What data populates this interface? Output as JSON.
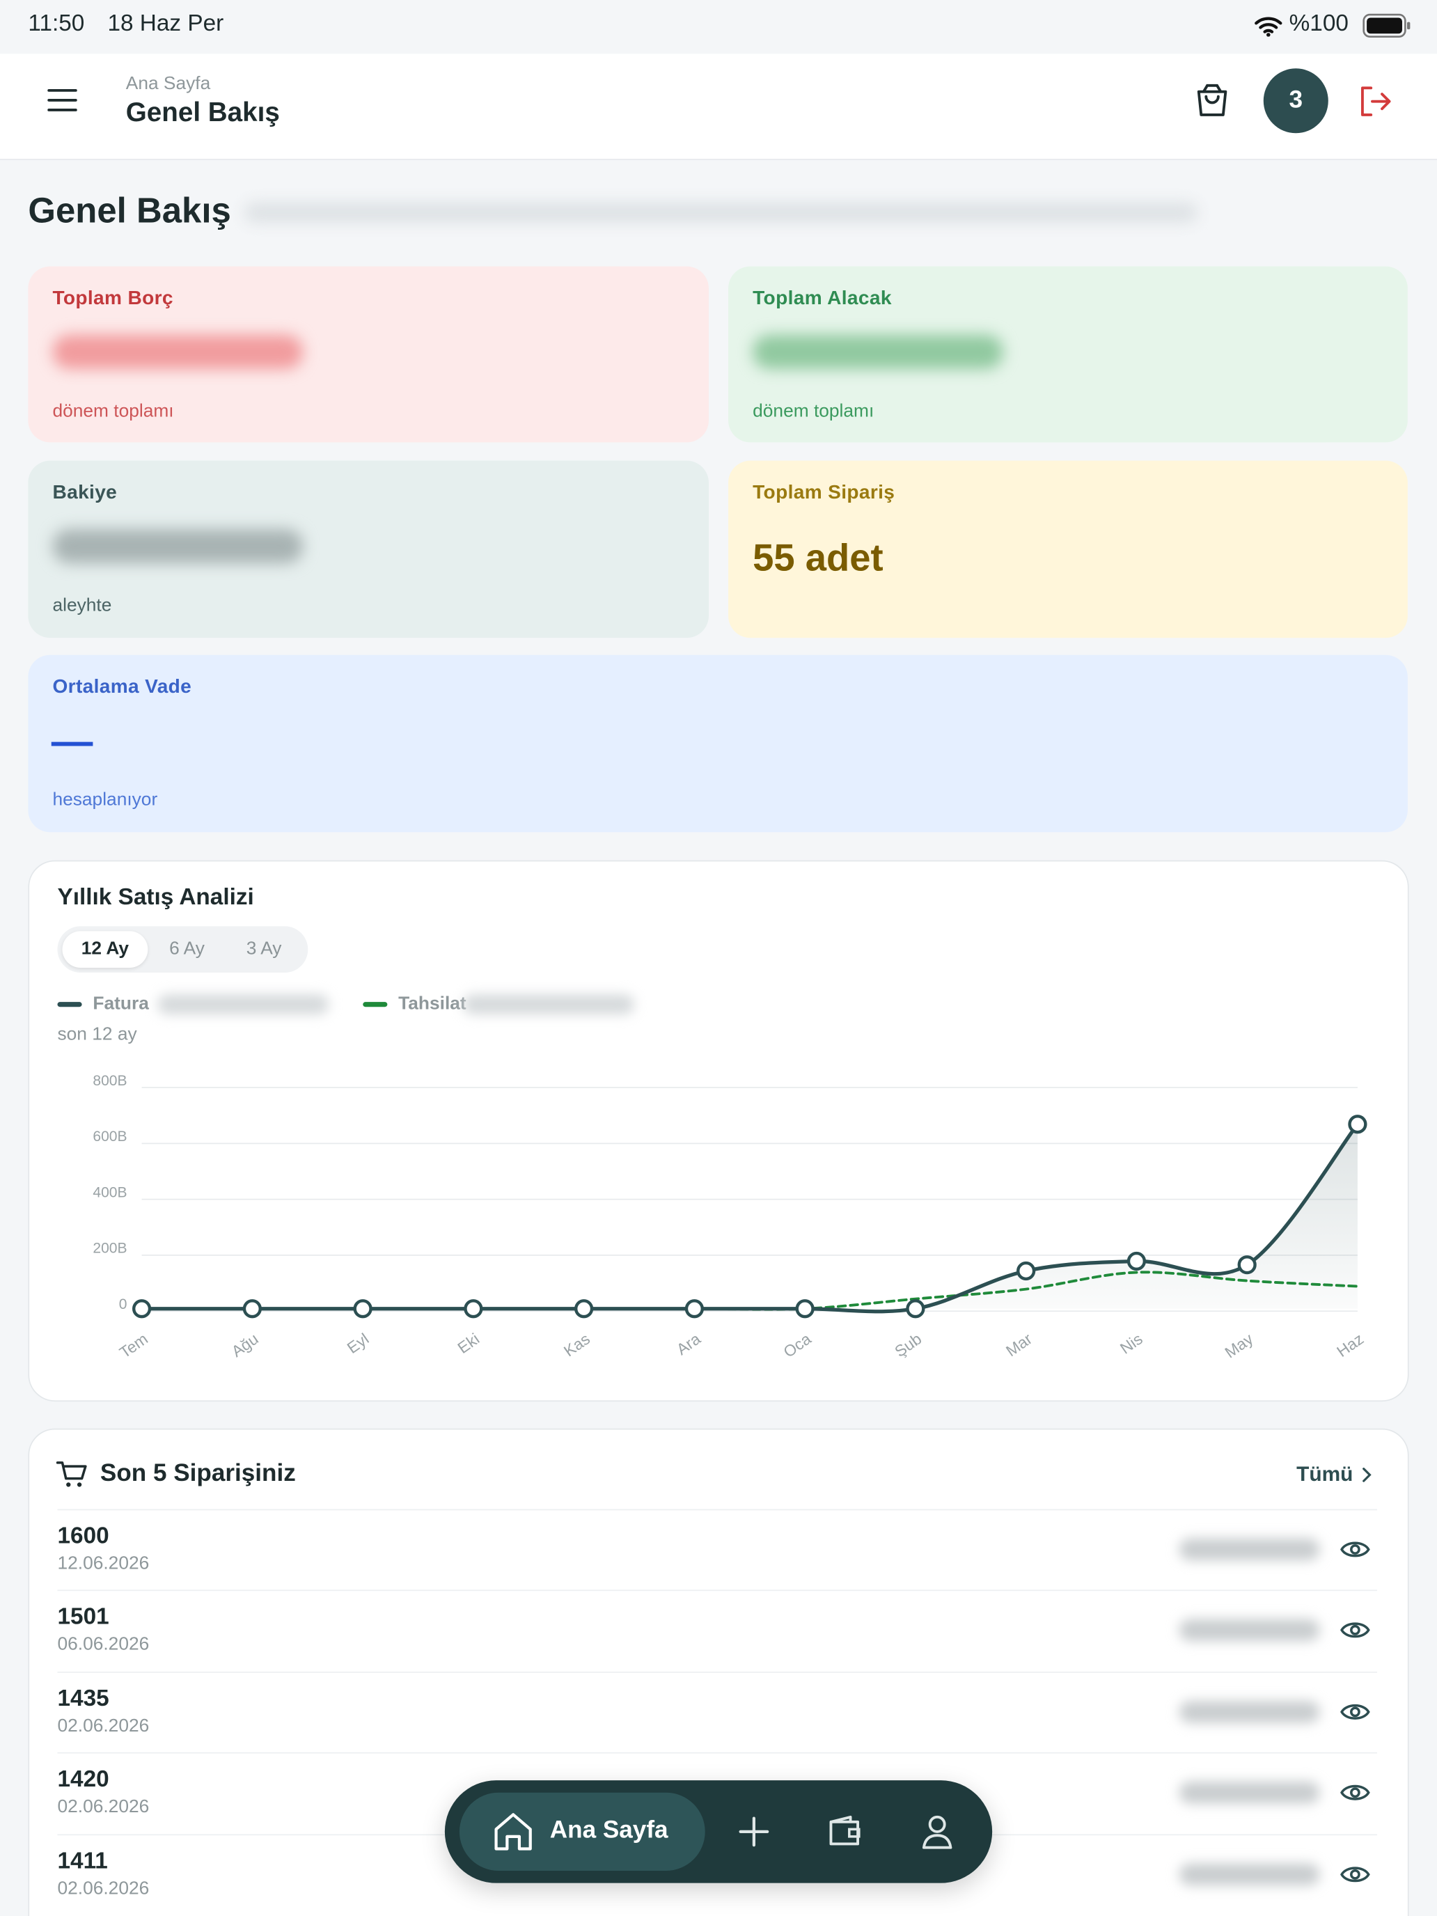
{
  "status_bar": {
    "time": "11:50",
    "date": "18 Haz Per",
    "battery": "%100"
  },
  "header": {
    "breadcrumb": "Ana Sayfa",
    "title": "Genel Bakış",
    "notification_count": "3"
  },
  "page_title": "Genel Bakış",
  "cards": [
    {
      "label": "Toplam Borç",
      "note": "dönem toplamı"
    },
    {
      "label": "Toplam Alacak",
      "note": "dönem toplamı"
    },
    {
      "label": "Bakiye",
      "note": "aleyhte"
    },
    {
      "label": "Toplam Sipariş",
      "value": "55 adet"
    },
    {
      "label": "Ortalama Vade",
      "value": "—",
      "note": "hesaplanıyor"
    }
  ],
  "sales_chart": {
    "type": "line",
    "title": "Yıllık Satış Analizi",
    "tabs": [
      "12 Ay",
      "6 Ay",
      "3 Ay"
    ],
    "subtitle": "son 12 ay",
    "categories": [
      "Tem",
      "Ağu",
      "Eyl",
      "Eki",
      "Kas",
      "Ara",
      "Oca",
      "Şub",
      "Mar",
      "Nis",
      "May",
      "Haz"
    ],
    "series": [
      {
        "name": "Fatura",
        "color": "#2c4f52",
        "markers": true,
        "area": true,
        "values": [
          0,
          0,
          0,
          0,
          0,
          0,
          0,
          0,
          135,
          170,
          157,
          660
        ]
      },
      {
        "name": "Tahsilat",
        "color": "#1f8a3a",
        "dashed": true,
        "values": [
          0,
          0,
          0,
          0,
          0,
          0,
          0,
          35,
          70,
          130,
          100,
          80
        ]
      }
    ],
    "ylim": [
      0,
      800
    ],
    "yticks": [
      0,
      {
        "value": 200,
        "label": "200B"
      },
      {
        "value": 400,
        "label": "400B"
      },
      {
        "value": 600,
        "label": "600B"
      },
      {
        "value": 800,
        "label": "800B"
      }
    ],
    "grid": true,
    "smooth": true
  },
  "orders": {
    "title": "Son 5 Siparişiniz",
    "link": "Tümü",
    "rows": [
      {
        "id": "1600",
        "date": "12.06.2026"
      },
      {
        "id": "1501",
        "date": "06.06.2026"
      },
      {
        "id": "1435",
        "date": "02.06.2026"
      },
      {
        "id": "1420",
        "date": "02.06.2026"
      },
      {
        "id": "1411",
        "date": "02.06.2026"
      }
    ]
  },
  "bottom_nav": {
    "active": "Ana Sayfa"
  }
}
